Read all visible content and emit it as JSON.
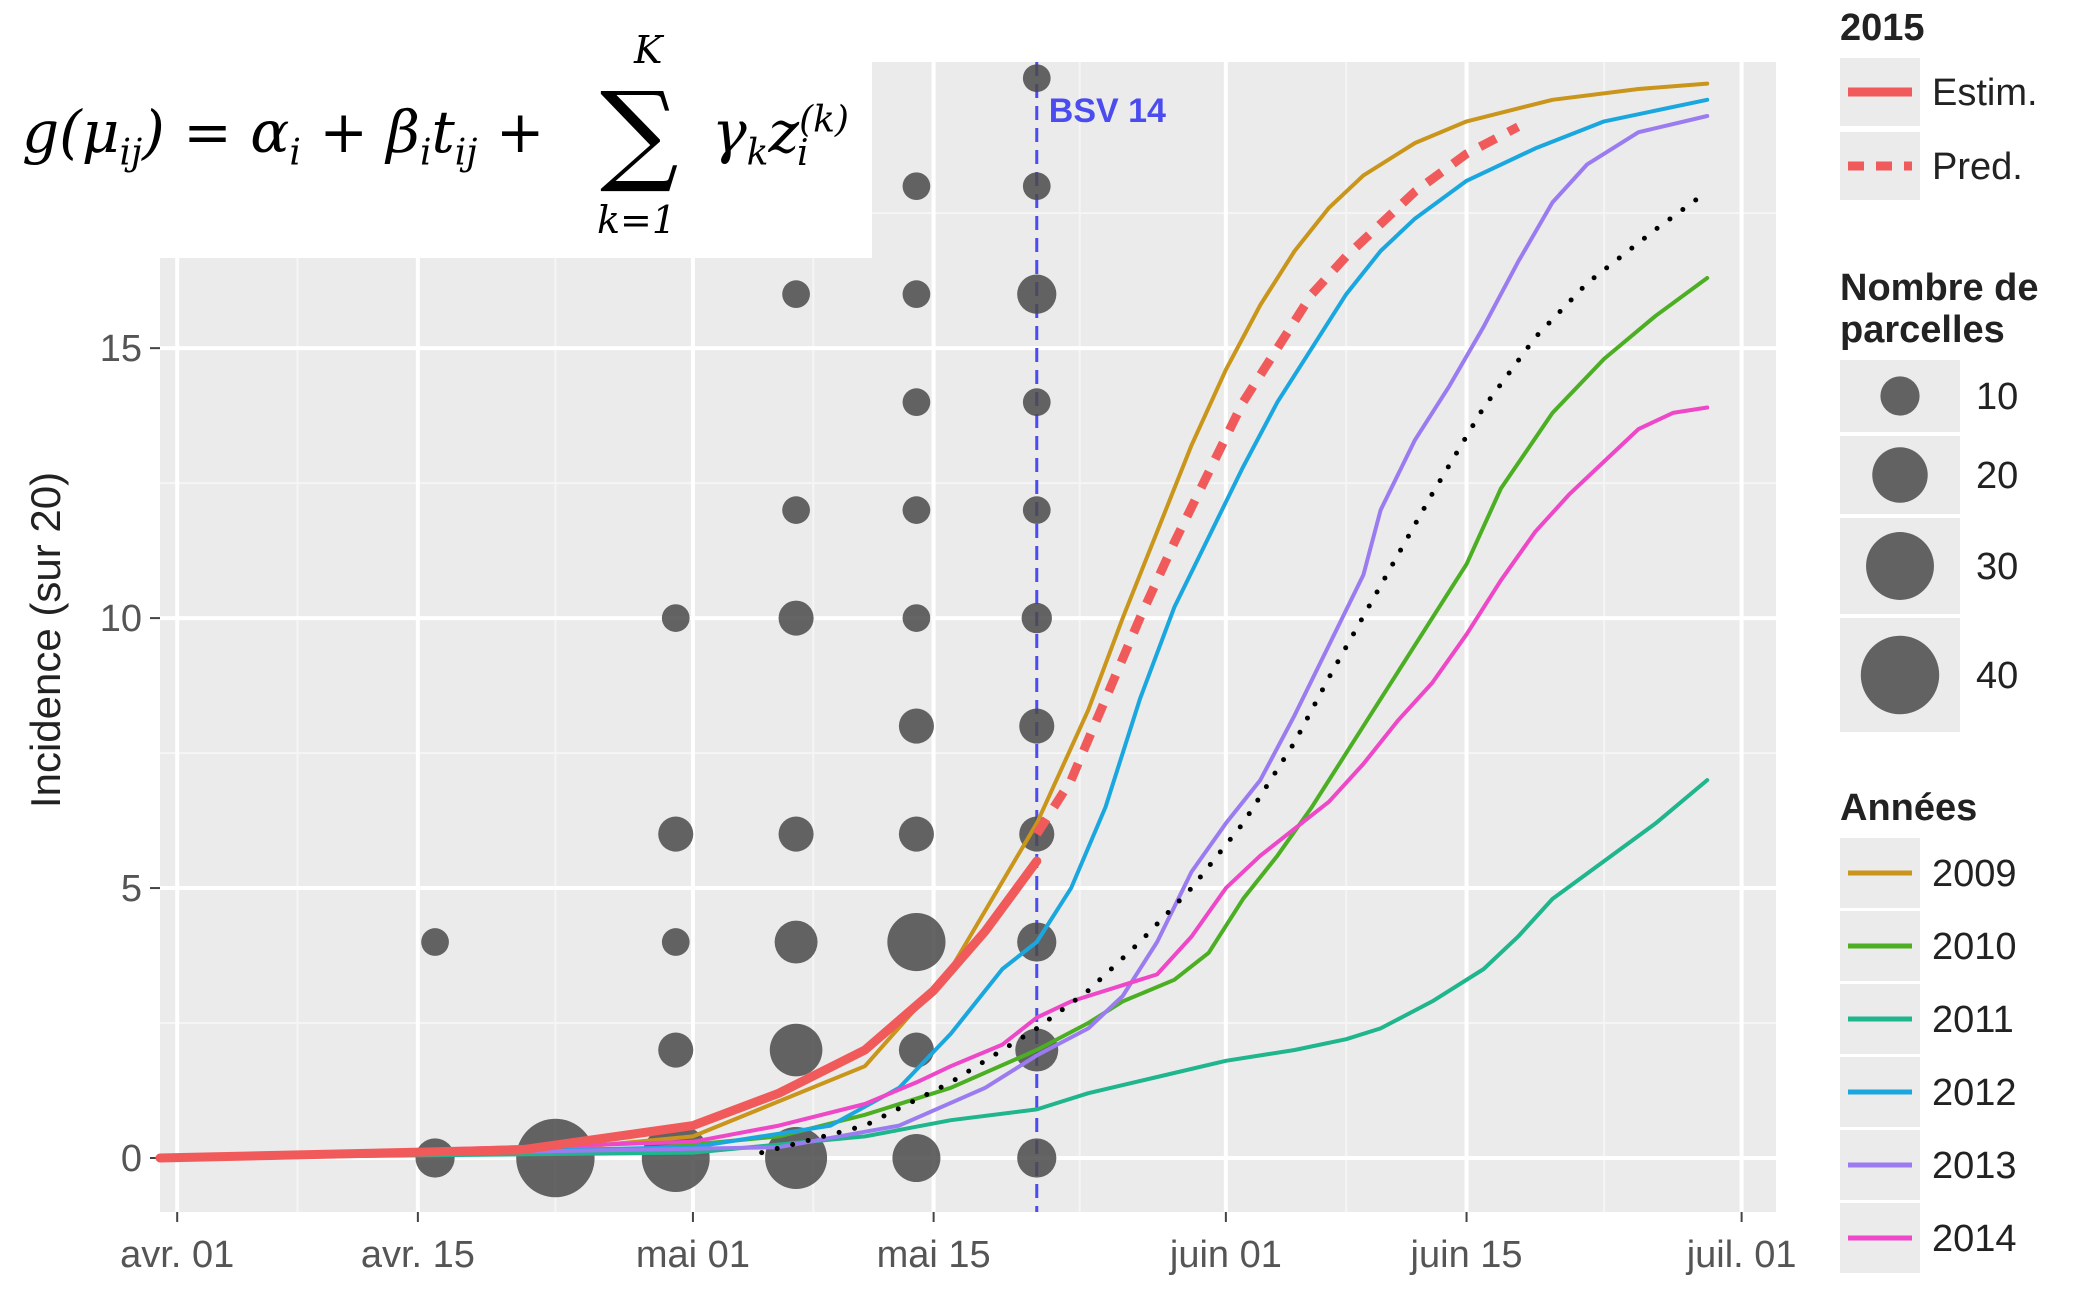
{
  "formula": {
    "lhs": "g(μ",
    "lhs_sub": "ij",
    "mid": ") = α",
    "alpha_sub": "i",
    "plus1": " + β",
    "beta_sub": "i",
    "t": "t",
    "t_sub": "ij",
    "plus2": " +",
    "sum_symbol": "∑",
    "sum_upper": "K",
    "sum_lower": "k=1",
    "gamma": "γ",
    "gamma_sub": "k",
    "z": "z",
    "z_sub": "i",
    "z_sup": "(k)"
  },
  "chart_data": {
    "type": "line",
    "ylabel": "Incidence (sur 20)",
    "xlabel": "",
    "x_ticks": [
      {
        "label": "avr. 01",
        "day": 0
      },
      {
        "label": "avr. 15",
        "day": 14
      },
      {
        "label": "mai 01",
        "day": 30
      },
      {
        "label": "mai 15",
        "day": 44
      },
      {
        "label": "juin 01",
        "day": 61
      },
      {
        "label": "juin 15",
        "day": 75
      },
      {
        "label": "juil. 01",
        "day": 91
      }
    ],
    "y_ticks": [
      0,
      5,
      10,
      15
    ],
    "xlim": [
      -1,
      93
    ],
    "ylim": [
      -1,
      20.3
    ],
    "grid": true,
    "vline": {
      "day": 50,
      "label": "BSV 14",
      "color": "#4b4cf0"
    },
    "series": [
      {
        "name": "2009",
        "color": "#c9951a",
        "points": [
          [
            -1,
            0
          ],
          [
            20,
            0.1
          ],
          [
            30,
            0.4
          ],
          [
            40,
            1.7
          ],
          [
            45,
            3.5
          ],
          [
            50,
            6.2
          ],
          [
            53,
            8.3
          ],
          [
            55,
            10
          ],
          [
            57,
            11.6
          ],
          [
            59,
            13.2
          ],
          [
            61,
            14.6
          ],
          [
            63,
            15.8
          ],
          [
            65,
            16.8
          ],
          [
            67,
            17.6
          ],
          [
            69,
            18.2
          ],
          [
            72,
            18.8
          ],
          [
            75,
            19.2
          ],
          [
            80,
            19.6
          ],
          [
            85,
            19.8
          ],
          [
            89,
            19.9
          ]
        ]
      },
      {
        "name": "2010",
        "color": "#4caf23",
        "points": [
          [
            -1,
            0
          ],
          [
            25,
            0.1
          ],
          [
            35,
            0.4
          ],
          [
            40,
            0.8
          ],
          [
            45,
            1.3
          ],
          [
            50,
            2
          ],
          [
            53,
            2.5
          ],
          [
            55,
            2.9
          ],
          [
            58,
            3.3
          ],
          [
            60,
            3.8
          ],
          [
            62,
            4.8
          ],
          [
            64,
            5.6
          ],
          [
            66,
            6.5
          ],
          [
            68,
            7.5
          ],
          [
            70,
            8.5
          ],
          [
            72,
            9.5
          ],
          [
            75,
            11
          ],
          [
            77,
            12.4
          ],
          [
            80,
            13.8
          ],
          [
            83,
            14.8
          ],
          [
            86,
            15.6
          ],
          [
            89,
            16.3
          ]
        ]
      },
      {
        "name": "2011",
        "color": "#1fb58d",
        "points": [
          [
            -1,
            0
          ],
          [
            30,
            0.1
          ],
          [
            40,
            0.4
          ],
          [
            45,
            0.7
          ],
          [
            50,
            0.9
          ],
          [
            53,
            1.2
          ],
          [
            57,
            1.5
          ],
          [
            61,
            1.8
          ],
          [
            65,
            2
          ],
          [
            68,
            2.2
          ],
          [
            70,
            2.4
          ],
          [
            73,
            2.9
          ],
          [
            76,
            3.5
          ],
          [
            78,
            4.1
          ],
          [
            80,
            4.8
          ],
          [
            83,
            5.5
          ],
          [
            86,
            6.2
          ],
          [
            89,
            7
          ]
        ]
      },
      {
        "name": "2012",
        "color": "#1aa7e0",
        "points": [
          [
            -1,
            0
          ],
          [
            30,
            0.2
          ],
          [
            38,
            0.6
          ],
          [
            42,
            1.3
          ],
          [
            45,
            2.3
          ],
          [
            48,
            3.5
          ],
          [
            50,
            4
          ],
          [
            52,
            5
          ],
          [
            54,
            6.5
          ],
          [
            56,
            8.5
          ],
          [
            58,
            10.2
          ],
          [
            60,
            11.5
          ],
          [
            62,
            12.8
          ],
          [
            64,
            14
          ],
          [
            66,
            15
          ],
          [
            68,
            16
          ],
          [
            70,
            16.8
          ],
          [
            72,
            17.4
          ],
          [
            75,
            18.1
          ],
          [
            79,
            18.7
          ],
          [
            83,
            19.2
          ],
          [
            89,
            19.6
          ]
        ]
      },
      {
        "name": "2013",
        "color": "#9b7cf0",
        "points": [
          [
            -1,
            0
          ],
          [
            35,
            0.2
          ],
          [
            42,
            0.6
          ],
          [
            47,
            1.3
          ],
          [
            50,
            1.9
          ],
          [
            53,
            2.4
          ],
          [
            55,
            3
          ],
          [
            57,
            4
          ],
          [
            59,
            5.3
          ],
          [
            61,
            6.2
          ],
          [
            63,
            7
          ],
          [
            65,
            8.2
          ],
          [
            67,
            9.5
          ],
          [
            69,
            10.8
          ],
          [
            70,
            12
          ],
          [
            72,
            13.3
          ],
          [
            74,
            14.3
          ],
          [
            76,
            15.4
          ],
          [
            78,
            16.6
          ],
          [
            80,
            17.7
          ],
          [
            82,
            18.4
          ],
          [
            85,
            19
          ],
          [
            89,
            19.3
          ]
        ]
      },
      {
        "name": "2014",
        "color": "#ee47c8",
        "points": [
          [
            -1,
            0
          ],
          [
            30,
            0.3
          ],
          [
            35,
            0.6
          ],
          [
            40,
            1
          ],
          [
            43,
            1.4
          ],
          [
            45,
            1.7
          ],
          [
            48,
            2.1
          ],
          [
            50,
            2.6
          ],
          [
            52,
            2.9
          ],
          [
            55,
            3.2
          ],
          [
            57,
            3.4
          ],
          [
            59,
            4.1
          ],
          [
            61,
            5
          ],
          [
            63,
            5.6
          ],
          [
            65,
            6.1
          ],
          [
            67,
            6.6
          ],
          [
            69,
            7.3
          ],
          [
            71,
            8.1
          ],
          [
            73,
            8.8
          ],
          [
            75,
            9.7
          ],
          [
            77,
            10.7
          ],
          [
            79,
            11.6
          ],
          [
            81,
            12.3
          ],
          [
            83,
            12.9
          ],
          [
            85,
            13.5
          ],
          [
            87,
            13.8
          ],
          [
            89,
            13.9
          ]
        ]
      },
      {
        "name": "Estim.",
        "color": "#f15a5a",
        "points": [
          [
            -1,
            0
          ],
          [
            20,
            0.15
          ],
          [
            30,
            0.6
          ],
          [
            35,
            1.2
          ],
          [
            40,
            2
          ],
          [
            44,
            3.1
          ],
          [
            47,
            4.2
          ],
          [
            50,
            5.5
          ]
        ]
      },
      {
        "name": "Pred.",
        "color": "#f15a5a",
        "dashed": true,
        "points": [
          [
            50,
            6
          ],
          [
            52,
            7
          ],
          [
            54,
            8.5
          ],
          [
            56,
            10
          ],
          [
            58,
            11.4
          ],
          [
            60,
            12.7
          ],
          [
            62,
            14
          ],
          [
            64,
            15
          ],
          [
            66,
            16
          ],
          [
            68,
            16.7
          ],
          [
            70,
            17.3
          ],
          [
            72,
            17.9
          ],
          [
            75,
            18.6
          ],
          [
            78,
            19.1
          ]
        ]
      },
      {
        "name": "",
        "color": "#000000",
        "dotted": true,
        "points": [
          [
            34,
            0.1
          ],
          [
            40,
            0.6
          ],
          [
            45,
            1.4
          ],
          [
            50,
            2.4
          ],
          [
            53,
            3.1
          ],
          [
            56,
            4
          ],
          [
            59,
            5
          ],
          [
            62,
            6.2
          ],
          [
            65,
            7.7
          ],
          [
            67,
            8.9
          ],
          [
            70,
            10.6
          ],
          [
            73,
            12.3
          ],
          [
            76,
            13.9
          ],
          [
            79,
            15.2
          ],
          [
            82,
            16.2
          ],
          [
            86,
            17.2
          ],
          [
            89,
            17.9
          ]
        ]
      }
    ],
    "observations": [
      {
        "day": 15,
        "y": 0,
        "n": 10
      },
      {
        "day": 15,
        "y": 4,
        "n": 5
      },
      {
        "day": 22,
        "y": 0,
        "n": 40
      },
      {
        "day": 29,
        "y": 0,
        "n": 30
      },
      {
        "day": 29,
        "y": 2,
        "n": 8
      },
      {
        "day": 29,
        "y": 4,
        "n": 5
      },
      {
        "day": 29,
        "y": 6,
        "n": 8
      },
      {
        "day": 29,
        "y": 10,
        "n": 5
      },
      {
        "day": 36,
        "y": 0,
        "n": 25
      },
      {
        "day": 36,
        "y": 2,
        "n": 18
      },
      {
        "day": 36,
        "y": 4,
        "n": 12
      },
      {
        "day": 36,
        "y": 6,
        "n": 8
      },
      {
        "day": 36,
        "y": 10,
        "n": 8
      },
      {
        "day": 36,
        "y": 12,
        "n": 5
      },
      {
        "day": 36,
        "y": 16,
        "n": 5
      },
      {
        "day": 43,
        "y": 0,
        "n": 15
      },
      {
        "day": 43,
        "y": 2,
        "n": 8
      },
      {
        "day": 43,
        "y": 4,
        "n": 22
      },
      {
        "day": 43,
        "y": 6,
        "n": 8
      },
      {
        "day": 43,
        "y": 8,
        "n": 8
      },
      {
        "day": 43,
        "y": 10,
        "n": 5
      },
      {
        "day": 43,
        "y": 12,
        "n": 5
      },
      {
        "day": 43,
        "y": 14,
        "n": 5
      },
      {
        "day": 43,
        "y": 16,
        "n": 5
      },
      {
        "day": 43,
        "y": 18,
        "n": 5
      },
      {
        "day": 50,
        "y": 0,
        "n": 10
      },
      {
        "day": 50,
        "y": 2,
        "n": 12
      },
      {
        "day": 50,
        "y": 4,
        "n": 10
      },
      {
        "day": 50,
        "y": 6,
        "n": 8
      },
      {
        "day": 50,
        "y": 8,
        "n": 8
      },
      {
        "day": 50,
        "y": 10,
        "n": 6
      },
      {
        "day": 50,
        "y": 12,
        "n": 5
      },
      {
        "day": 50,
        "y": 14,
        "n": 5
      },
      {
        "day": 50,
        "y": 16,
        "n": 10
      },
      {
        "day": 50,
        "y": 18,
        "n": 5
      },
      {
        "day": 50,
        "y": 20,
        "n": 5
      }
    ],
    "point_color": "#4a4a4a",
    "legend": {
      "placement": "right",
      "sections": [
        {
          "title": "2015",
          "type": "line",
          "items": [
            {
              "label": "Estim.",
              "color": "#f15a5a",
              "dashed": false
            },
            {
              "label": "Pred.",
              "color": "#f15a5a",
              "dashed": true
            }
          ]
        },
        {
          "title": "Nombre de\nparcelles",
          "title_lines": [
            "Nombre de",
            "parcelles"
          ],
          "type": "size",
          "items": [
            {
              "label": "10",
              "n": 10
            },
            {
              "label": "20",
              "n": 20
            },
            {
              "label": "30",
              "n": 30
            },
            {
              "label": "40",
              "n": 40
            }
          ]
        },
        {
          "title": "Années",
          "type": "line",
          "items": [
            {
              "label": "2009",
              "color": "#c9951a"
            },
            {
              "label": "2010",
              "color": "#4caf23"
            },
            {
              "label": "2011",
              "color": "#1fb58d"
            },
            {
              "label": "2012",
              "color": "#1aa7e0"
            },
            {
              "label": "2013",
              "color": "#9b7cf0"
            },
            {
              "label": "2014",
              "color": "#ee47c8"
            }
          ]
        }
      ]
    }
  }
}
